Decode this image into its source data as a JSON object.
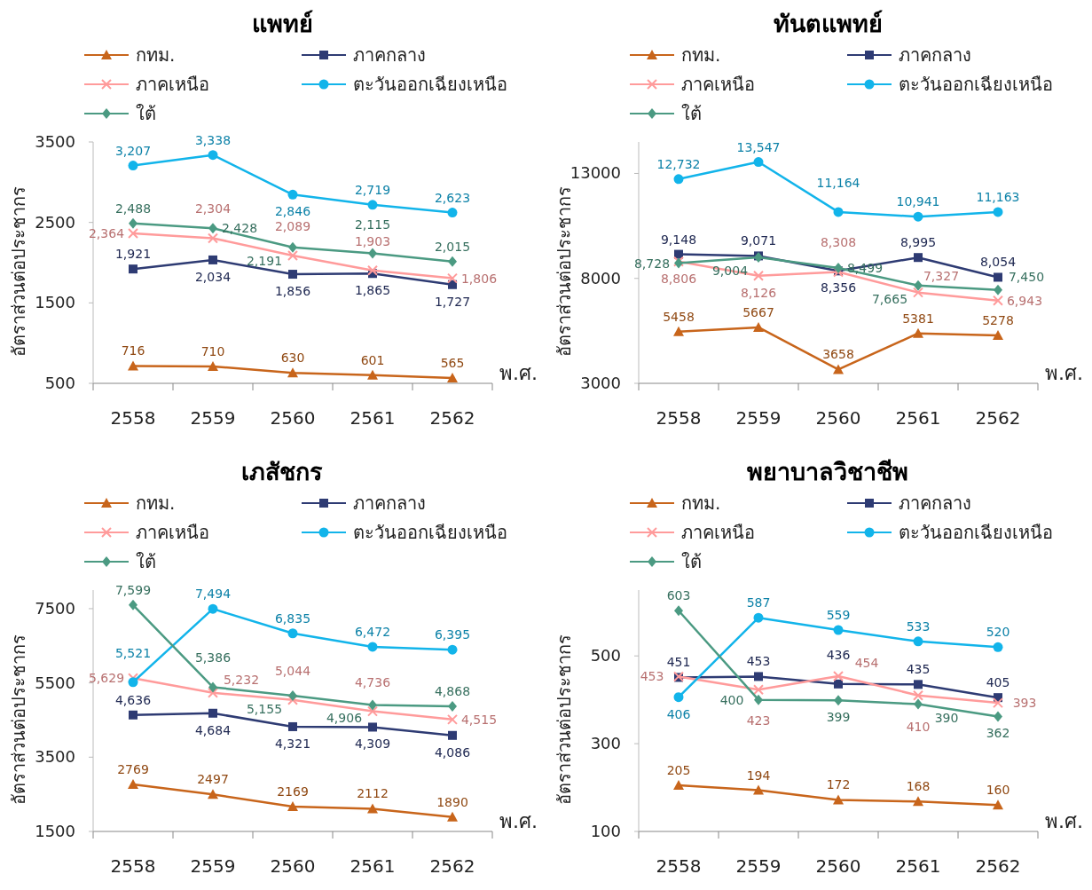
{
  "chart_data": [
    {
      "type": "line",
      "title": "แพทย์",
      "xlabel": "พ.ศ.",
      "ylabel": "อัตราส่วนต่อประชากร",
      "categories": [
        "2558",
        "2559",
        "2560",
        "2561",
        "2562"
      ],
      "ylim": [
        500,
        3500
      ],
      "yticks": [
        500,
        1500,
        2500,
        3500
      ],
      "legend": "top",
      "grid": false,
      "line_style": "solid",
      "series": [
        {
          "name": "กทม.",
          "color": "#c8651b",
          "marker": "triangle",
          "values": [
            716,
            710,
            630,
            601,
            565
          ],
          "value_labels": [
            "716",
            "710",
            "630",
            "601",
            "565"
          ]
        },
        {
          "name": "ภาคกลาง",
          "color": "#2e3b73",
          "marker": "square",
          "values": [
            1921,
            2034,
            1856,
            1865,
            1727
          ],
          "value_labels": [
            "1,921",
            "2,034",
            "1,856",
            "1,865",
            "1,727"
          ]
        },
        {
          "name": "ภาคเหนือ",
          "color": "#ff9b9b",
          "marker": "cross",
          "values": [
            2364,
            2304,
            2089,
            1903,
            1806
          ],
          "value_labels": [
            "2,364",
            "2,304",
            "2,089",
            "1,903",
            "1,806"
          ]
        },
        {
          "name": "ตะวันออกเฉียงเหนือ",
          "color": "#12b4ea",
          "marker": "circle",
          "values": [
            3207,
            3338,
            2846,
            2719,
            2623
          ],
          "value_labels": [
            "3,207",
            "3,338",
            "2,846",
            "2,719",
            "2,623"
          ]
        },
        {
          "name": "ใต้",
          "color": "#4b9a82",
          "marker": "diamond",
          "values": [
            2488,
            2428,
            2191,
            2115,
            2015
          ],
          "value_labels": [
            "2,488",
            "2,428",
            "2,191",
            "2,115",
            "2,015"
          ]
        }
      ]
    },
    {
      "type": "line",
      "title": "ทันตแพทย์",
      "xlabel": "พ.ศ.",
      "ylabel": "อัตราส่วนต่อประชากร",
      "categories": [
        "2558",
        "2559",
        "2560",
        "2561",
        "2562"
      ],
      "ylim": [
        3000,
        14500
      ],
      "yticks": [
        3000,
        8000,
        13000
      ],
      "legend": "top",
      "grid": false,
      "line_style": "solid",
      "series": [
        {
          "name": "กทม.",
          "color": "#c8651b",
          "marker": "triangle",
          "values": [
            5458,
            5667,
            3658,
            5381,
            5278
          ],
          "value_labels": [
            "5458",
            "5667",
            "3658",
            "5381",
            "5278"
          ]
        },
        {
          "name": "ภาคกลาง",
          "color": "#2e3b73",
          "marker": "square",
          "values": [
            9148,
            9071,
            8356,
            8995,
            8054
          ],
          "value_labels": [
            "9,148",
            "9,071",
            "8,356",
            "8,995",
            "8,054"
          ]
        },
        {
          "name": "ภาคเหนือ",
          "color": "#ff9b9b",
          "marker": "cross",
          "values": [
            8806,
            8126,
            8308,
            7327,
            6943
          ],
          "value_labels": [
            "8,806",
            "8,126",
            "8,308",
            "7,327",
            "6,943"
          ]
        },
        {
          "name": "ตะวันออกเฉียงเหนือ",
          "color": "#12b4ea",
          "marker": "circle",
          "values": [
            12732,
            13547,
            11164,
            10941,
            11163
          ],
          "value_labels": [
            "12,732",
            "13,547",
            "11,164",
            "10,941",
            "11,163"
          ]
        },
        {
          "name": "ใต้",
          "color": "#4b9a82",
          "marker": "diamond",
          "values": [
            8728,
            9004,
            8499,
            7665,
            7450
          ],
          "value_labels": [
            "8,728",
            "9,004",
            "8,499",
            "7,665",
            "7,450"
          ]
        }
      ]
    },
    {
      "type": "line",
      "title": "เภสัชกร",
      "xlabel": "พ.ศ.",
      "ylabel": "อัตราส่วนต่อประชากร",
      "categories": [
        "2558",
        "2559",
        "2560",
        "2561",
        "2562"
      ],
      "ylim": [
        1500,
        8000
      ],
      "yticks": [
        1500,
        3500,
        5500,
        7500
      ],
      "legend": "top",
      "grid": false,
      "line_style": "solid",
      "series": [
        {
          "name": "กทม.",
          "color": "#c8651b",
          "marker": "triangle",
          "values": [
            2769,
            2497,
            2169,
            2112,
            1890
          ],
          "value_labels": [
            "2769",
            "2497",
            "2169",
            "2112",
            "1890"
          ]
        },
        {
          "name": "ภาคกลาง",
          "color": "#2e3b73",
          "marker": "square",
          "values": [
            4636,
            4684,
            4321,
            4309,
            4086
          ],
          "value_labels": [
            "4,636",
            "4,684",
            "4,321",
            "4,309",
            "4,086"
          ]
        },
        {
          "name": "ภาคเหนือ",
          "color": "#ff9b9b",
          "marker": "cross",
          "values": [
            5629,
            5232,
            5044,
            4736,
            4515
          ],
          "value_labels": [
            "5,629",
            "5,232",
            "5,044",
            "4,736",
            "4,515"
          ]
        },
        {
          "name": "ตะวันออกเฉียงเหนือ",
          "color": "#12b4ea",
          "marker": "circle",
          "values": [
            5521,
            7494,
            6835,
            6472,
            6395
          ],
          "value_labels": [
            "5,521",
            "7,494",
            "6,835",
            "6,472",
            "6,395"
          ]
        },
        {
          "name": "ใต้",
          "color": "#4b9a82",
          "marker": "diamond",
          "values": [
            7599,
            5386,
            5155,
            4906,
            4868
          ],
          "value_labels": [
            "7,599",
            "5,386",
            "5,155",
            "4,906",
            "4,868"
          ]
        }
      ]
    },
    {
      "type": "line",
      "title": "พยาบาลวิชาชีพ",
      "xlabel": "พ.ศ.",
      "ylabel": "อัตราส่วนต่อประชากร",
      "categories": [
        "2558",
        "2559",
        "2560",
        "2561",
        "2562"
      ],
      "ylim": [
        100,
        650
      ],
      "yticks": [
        100,
        300,
        500
      ],
      "legend": "top",
      "grid": false,
      "line_style": "solid",
      "series": [
        {
          "name": "กทม.",
          "color": "#c8651b",
          "marker": "triangle",
          "values": [
            205,
            194,
            172,
            168,
            160
          ],
          "value_labels": [
            "205",
            "194",
            "172",
            "168",
            "160"
          ]
        },
        {
          "name": "ภาคกลาง",
          "color": "#2e3b73",
          "marker": "square",
          "values": [
            451,
            453,
            436,
            435,
            405
          ],
          "value_labels": [
            "451",
            "453",
            "436",
            "435",
            "405"
          ]
        },
        {
          "name": "ภาคเหนือ",
          "color": "#ff9b9b",
          "marker": "cross",
          "values": [
            453,
            423,
            454,
            410,
            393
          ],
          "value_labels": [
            "453",
            "423",
            "454",
            "410",
            "393"
          ]
        },
        {
          "name": "ตะวันออกเฉียงเหนือ",
          "color": "#12b4ea",
          "marker": "circle",
          "values": [
            406,
            587,
            559,
            533,
            520
          ],
          "value_labels": [
            "406",
            "587",
            "559",
            "533",
            "520"
          ]
        },
        {
          "name": "ใต้",
          "color": "#4b9a82",
          "marker": "diamond",
          "values": [
            603,
            400,
            399,
            390,
            362
          ],
          "value_labels": [
            "603",
            "400",
            "399",
            "390",
            "362"
          ]
        }
      ]
    }
  ]
}
